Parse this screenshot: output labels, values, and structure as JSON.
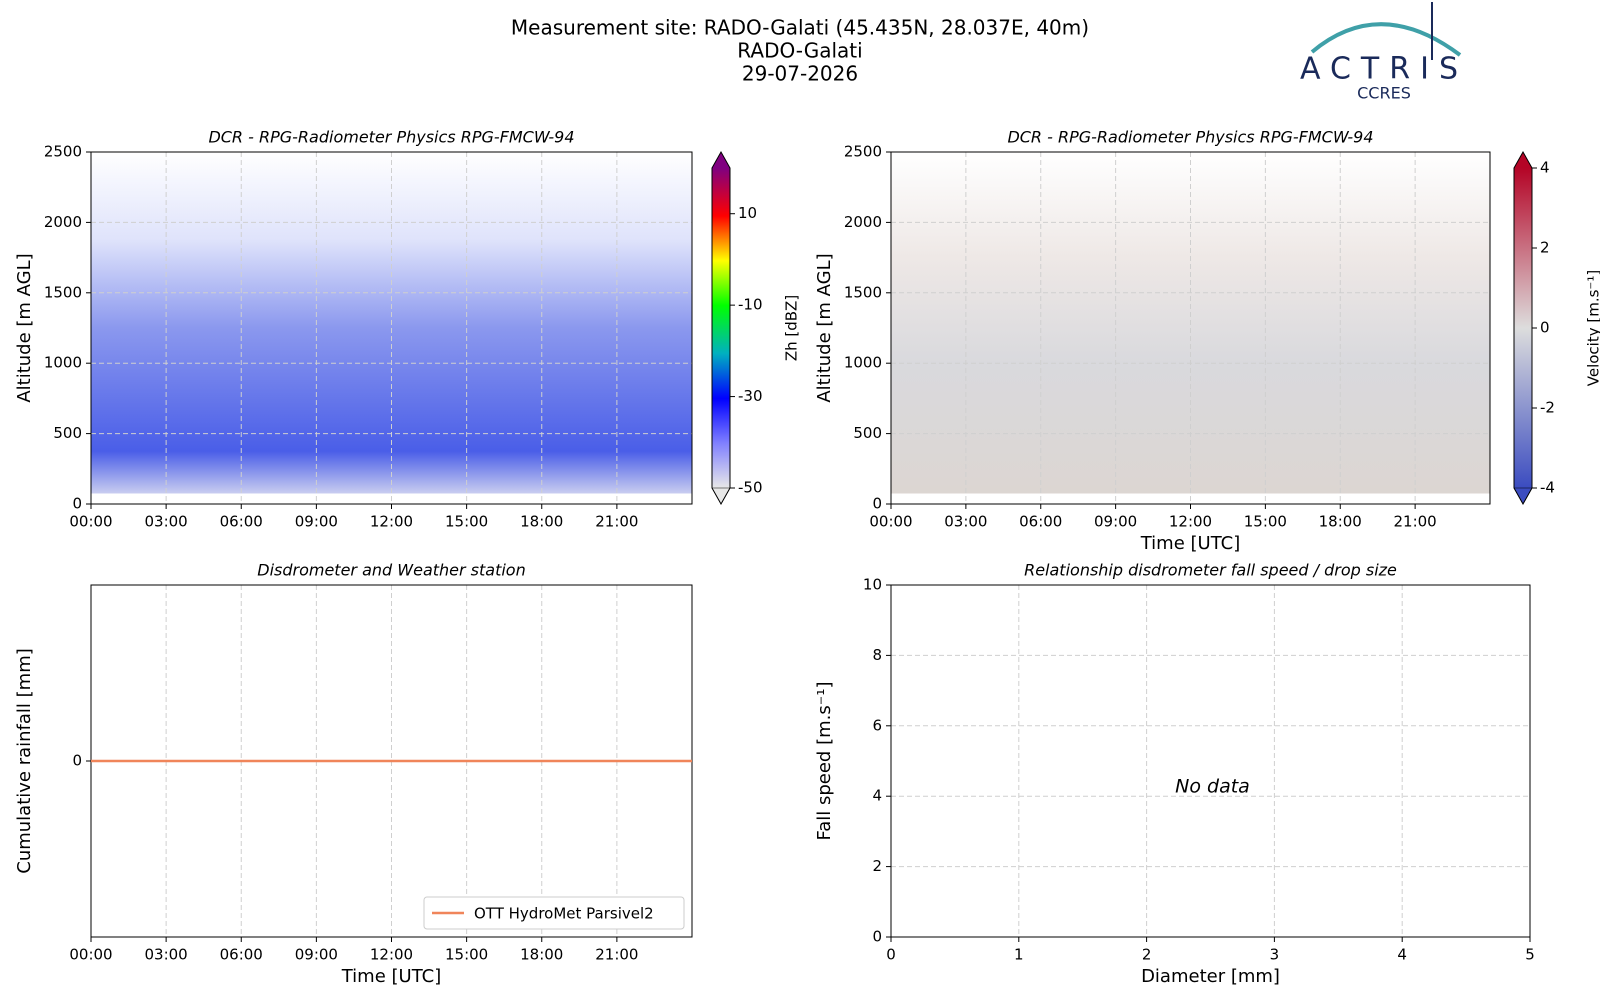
{
  "header": {
    "title_lines": [
      "Measurement site: RADO-Galati (45.435N, 28.037E, 40m)",
      "RADO-Galati",
      "29-07-2026"
    ],
    "logo": {
      "name": "ACTRIS",
      "sub": "CCRES"
    }
  },
  "chart_data": [
    {
      "type": "heatmap",
      "title": "DCR - RPG-Radiometer Physics RPG-FMCW-94",
      "ylabel": "Altitude [m AGL]",
      "xlim": [
        0,
        24
      ],
      "xticks": [
        {
          "value": 0,
          "label": "00:00"
        },
        {
          "value": 3,
          "label": "03:00"
        },
        {
          "value": 6,
          "label": "06:00"
        },
        {
          "value": 9,
          "label": "09:00"
        },
        {
          "value": 12,
          "label": "12:00"
        },
        {
          "value": 15,
          "label": "15:00"
        },
        {
          "value": 18,
          "label": "18:00"
        },
        {
          "value": 21,
          "label": "21:00"
        }
      ],
      "ylim": [
        0,
        2500
      ],
      "yticks": [
        0,
        500,
        1000,
        1500,
        2000,
        2500
      ],
      "grid": true,
      "cmap": "jet",
      "colorbar": {
        "label": "Zh [dBZ]",
        "lim": [
          -50,
          20
        ],
        "ticks": [
          -50,
          -30,
          -10,
          10
        ]
      }
    },
    {
      "type": "heatmap",
      "title": "DCR - RPG-Radiometer Physics RPG-FMCW-94",
      "ylabel": "Altitude [m AGL]",
      "xlabel": "Time [UTC]",
      "xlim": [
        0,
        24
      ],
      "xticks": [
        {
          "value": 0,
          "label": "00:00"
        },
        {
          "value": 3,
          "label": "03:00"
        },
        {
          "value": 6,
          "label": "06:00"
        },
        {
          "value": 9,
          "label": "09:00"
        },
        {
          "value": 12,
          "label": "12:00"
        },
        {
          "value": 15,
          "label": "15:00"
        },
        {
          "value": 18,
          "label": "18:00"
        },
        {
          "value": 21,
          "label": "21:00"
        }
      ],
      "ylim": [
        0,
        2500
      ],
      "yticks": [
        0,
        500,
        1000,
        1500,
        2000,
        2500
      ],
      "grid": true,
      "cmap": "coolwarm",
      "colorbar": {
        "label": "Velocity [m.s⁻¹]",
        "lim": [
          -4,
          4
        ],
        "ticks": [
          -4,
          -2,
          0,
          2,
          4
        ]
      }
    },
    {
      "type": "line",
      "title": "Disdrometer and Weather station",
      "ylabel": "Cumulative rainfall [mm]",
      "xlabel": "Time [UTC]",
      "xlim": [
        0,
        24
      ],
      "xticks": [
        {
          "value": 0,
          "label": "00:00"
        },
        {
          "value": 3,
          "label": "03:00"
        },
        {
          "value": 6,
          "label": "06:00"
        },
        {
          "value": 9,
          "label": "09:00"
        },
        {
          "value": 12,
          "label": "12:00"
        },
        {
          "value": 15,
          "label": "15:00"
        },
        {
          "value": 18,
          "label": "18:00"
        },
        {
          "value": 21,
          "label": "21:00"
        }
      ],
      "ylim": [
        -1,
        1
      ],
      "yticks": [
        0
      ],
      "grid": true,
      "legend": "lower right",
      "series": [
        {
          "name": "OTT HydroMet Parsivel2",
          "color": "#f0855a",
          "x": [
            0,
            24
          ],
          "values": [
            0,
            0
          ]
        }
      ]
    },
    {
      "type": "scatter",
      "title": "Relationship disdrometer fall speed / drop size",
      "ylabel": "Fall speed [m.s⁻¹]",
      "xlabel": "Diameter [mm]",
      "xlim": [
        0,
        5
      ],
      "xticks": [
        0,
        1,
        2,
        3,
        4,
        5
      ],
      "ylim": [
        0,
        10
      ],
      "yticks": [
        0,
        2,
        4,
        6,
        8,
        10
      ],
      "grid": true,
      "annotation": "No data"
    }
  ]
}
